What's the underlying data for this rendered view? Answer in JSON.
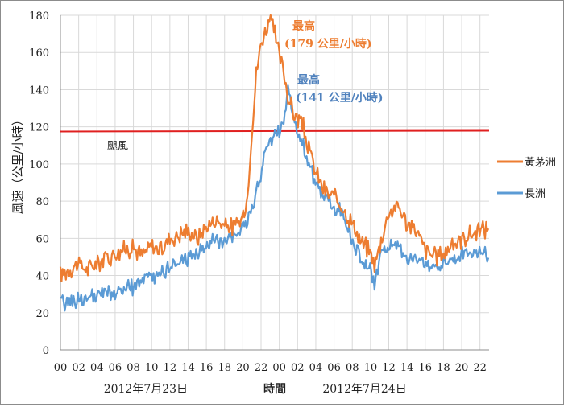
{
  "chart_data": {
    "type": "line",
    "title": "",
    "xlabel": "時間",
    "ylabel": "風速（公里/小時）",
    "ylim": [
      0,
      180
    ],
    "yticks": [
      0,
      20,
      40,
      60,
      80,
      100,
      120,
      140,
      160,
      180
    ],
    "x_tick_labels": [
      "00",
      "02",
      "04",
      "06",
      "08",
      "10",
      "12",
      "14",
      "16",
      "18",
      "20",
      "22",
      "00",
      "02",
      "04",
      "06",
      "08",
      "10",
      "12",
      "14",
      "16",
      "18",
      "20",
      "22"
    ],
    "x_hour_range": [
      0,
      47
    ],
    "date_labels": [
      {
        "label": "2012年7月23日",
        "center_hour": 9
      },
      {
        "label": "2012年7月24日",
        "center_hour": 33
      }
    ],
    "reference_line": {
      "label": "颶風",
      "value": 117.5,
      "color": "#e02020"
    },
    "series": [
      {
        "name": "黃茅洲",
        "color": "#ed7d31",
        "x": [
          0,
          1,
          2,
          3,
          4,
          5,
          6,
          7,
          8,
          9,
          10,
          11,
          12,
          13,
          14,
          15,
          16,
          17,
          18,
          19,
          20,
          20.5,
          21,
          21.5,
          22,
          22.5,
          23,
          23.5,
          24,
          24.5,
          25,
          25.5,
          26,
          26.5,
          27,
          28,
          29,
          30,
          31,
          32,
          33,
          34,
          34.5,
          35,
          36,
          37,
          38,
          39,
          40,
          41,
          42,
          43,
          44,
          45,
          46,
          47
        ],
        "values": [
          40,
          44,
          46,
          43,
          47,
          50,
          52,
          54,
          55,
          51,
          56,
          54,
          60,
          62,
          64,
          60,
          66,
          70,
          67,
          66,
          71,
          82,
          118,
          150,
          165,
          172,
          179,
          170,
          158,
          150,
          135,
          128,
          125,
          122,
          112,
          95,
          85,
          82,
          76,
          68,
          58,
          52,
          46,
          56,
          74,
          78,
          68,
          64,
          54,
          50,
          52,
          57,
          60,
          62,
          64,
          66
        ]
      },
      {
        "name": "長洲",
        "color": "#5b9bd5",
        "x": [
          0,
          1,
          2,
          3,
          4,
          5,
          6,
          7,
          8,
          9,
          10,
          11,
          12,
          13,
          14,
          15,
          16,
          17,
          18,
          19,
          20,
          20.5,
          21,
          21.5,
          22,
          22.5,
          23,
          23.5,
          24,
          24.5,
          25,
          25.5,
          26,
          26.5,
          27,
          28,
          29,
          30,
          31,
          32,
          33,
          34,
          34.5,
          35,
          36,
          37,
          38,
          39,
          40,
          41,
          42,
          43,
          44,
          45,
          46,
          47
        ],
        "values": [
          25,
          26,
          27,
          28,
          28,
          31,
          30,
          32,
          34,
          37,
          38,
          42,
          44,
          46,
          50,
          52,
          56,
          58,
          60,
          62,
          66,
          70,
          76,
          84,
          96,
          106,
          112,
          116,
          118,
          124,
          141,
          126,
          118,
          112,
          104,
          88,
          82,
          76,
          74,
          60,
          48,
          42,
          36,
          50,
          56,
          55,
          50,
          48,
          46,
          45,
          47,
          49,
          51,
          52,
          53,
          51
        ]
      }
    ],
    "annotations": [
      {
        "line1": "最高",
        "line2": "(179 公里/小時)",
        "series": "黃茅洲",
        "color": "#ed7d31"
      },
      {
        "line1": "最高",
        "line2": "(141 公里/小時)",
        "series": "長洲",
        "color": "#4f81bd"
      }
    ],
    "legend": {
      "placement": "right",
      "entries": [
        "黃茅洲",
        "長洲"
      ]
    }
  }
}
